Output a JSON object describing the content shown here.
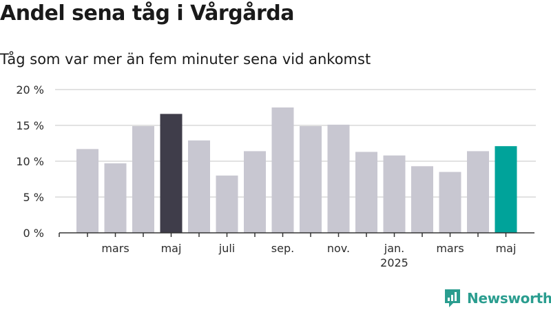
{
  "title": "Andel sena tåg i Vårgårda",
  "subtitle": "Tåg som var mer än fem minuter sena vid ankomst",
  "brand": {
    "name": "Newsworthy",
    "color": "#2a9d8f"
  },
  "colors": {
    "default": "#c8c7d1",
    "highlight_dark": "#3f3d4a",
    "highlight_accent": "#00a39a",
    "grid": "#d9d9d9",
    "axis": "#333333"
  },
  "chart_data": {
    "type": "bar",
    "title": "Andel sena tåg i Vårgårda",
    "subtitle": "Tåg som var mer än fem minuter sena vid ankomst",
    "xlabel": "",
    "ylabel": "",
    "ylim": [
      0,
      20
    ],
    "yticks": [
      0,
      5,
      10,
      15,
      20
    ],
    "ytick_labels": [
      "0 %",
      "5 %",
      "10 %",
      "15 %",
      "20 %"
    ],
    "grid": true,
    "categories": [
      "2024-02",
      "2024-03",
      "2024-04",
      "2024-05",
      "2024-06",
      "2024-07",
      "2024-08",
      "2024-09",
      "2024-10",
      "2024-11",
      "2024-12",
      "2025-01",
      "2025-02",
      "2025-03",
      "2025-04",
      "2025-05"
    ],
    "values": [
      11.7,
      9.7,
      14.9,
      16.6,
      12.9,
      8.0,
      11.4,
      17.5,
      14.9,
      15.1,
      11.3,
      10.8,
      9.3,
      8.5,
      11.4,
      12.1
    ],
    "highlight": {
      "2024-05": "dark",
      "2025-05": "accent"
    },
    "xtick_labels": [
      {
        "category": "2024-03",
        "label": "mars"
      },
      {
        "category": "2024-05",
        "label": "maj"
      },
      {
        "category": "2024-07",
        "label": "juli"
      },
      {
        "category": "2024-09",
        "label": "sep."
      },
      {
        "category": "2024-11",
        "label": "nov."
      },
      {
        "category": "2025-01",
        "label": "jan.",
        "sublabel": "2025"
      },
      {
        "category": "2025-03",
        "label": "mars"
      },
      {
        "category": "2025-05",
        "label": "maj"
      }
    ]
  }
}
